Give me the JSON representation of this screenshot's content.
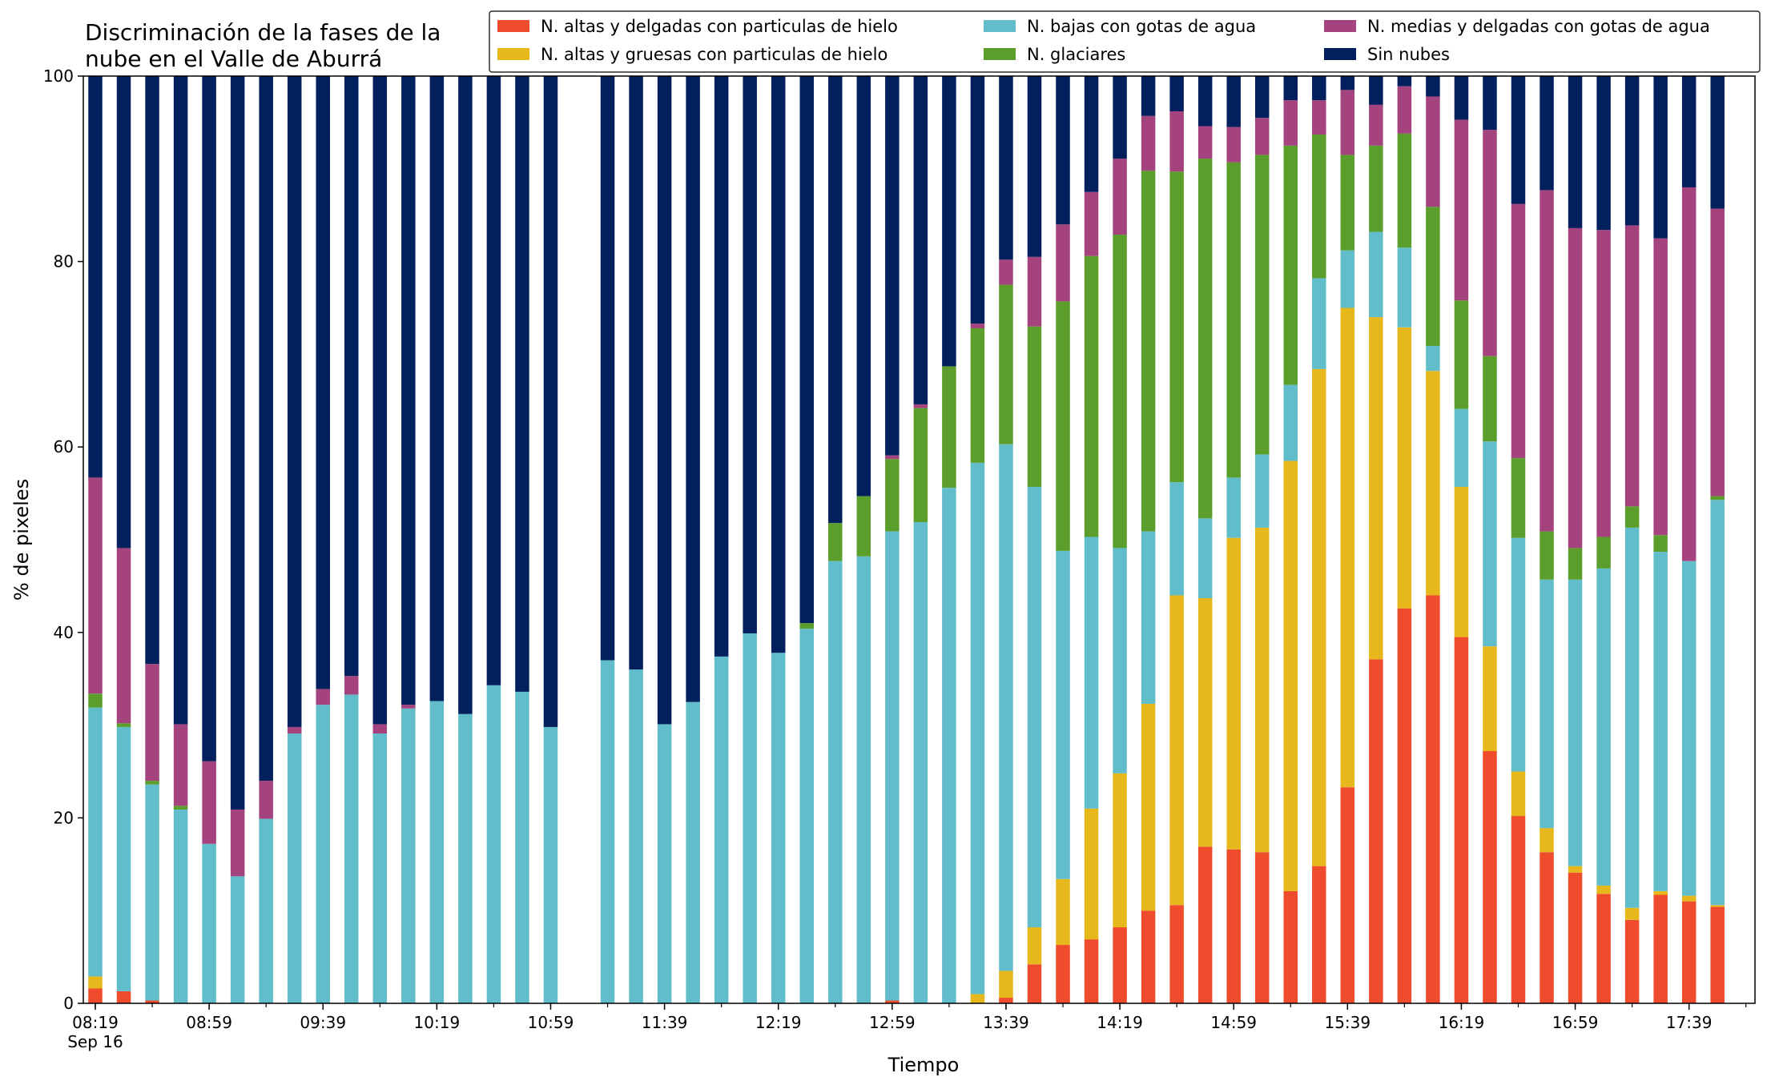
{
  "chart_data": {
    "type": "bar",
    "stacked": true,
    "title_lines": [
      "Discriminación de la fases de la",
      "nube en el Valle de Aburrá"
    ],
    "xlabel": "Tiempo",
    "ylabel": "% de pixeles",
    "ylim": [
      0,
      100
    ],
    "yticks": [
      0,
      20,
      40,
      60,
      80,
      100
    ],
    "xticks": [
      {
        "index": 0,
        "label": "08:19",
        "sublabel": "Sep 16"
      },
      {
        "index": 4,
        "label": "08:59"
      },
      {
        "index": 8,
        "label": "09:39"
      },
      {
        "index": 12,
        "label": "10:19"
      },
      {
        "index": 16,
        "label": "10:59"
      },
      {
        "index": 20,
        "label": "11:39"
      },
      {
        "index": 24,
        "label": "12:19"
      },
      {
        "index": 28,
        "label": "12:59"
      },
      {
        "index": 32,
        "label": "13:39"
      },
      {
        "index": 36,
        "label": "14:19"
      },
      {
        "index": 40,
        "label": "14:59"
      },
      {
        "index": 44,
        "label": "15:39"
      },
      {
        "index": 48,
        "label": "16:19"
      },
      {
        "index": 52,
        "label": "16:59"
      },
      {
        "index": 56,
        "label": "17:39"
      }
    ],
    "categories": [
      "08:19",
      "08:29",
      "08:39",
      "08:49",
      "08:59",
      "09:09",
      "09:19",
      "09:29",
      "09:39",
      "09:49",
      "09:59",
      "10:09",
      "10:19",
      "10:29",
      "10:39",
      "10:49",
      "10:59",
      "11:09",
      "11:19",
      "11:29",
      "11:39",
      "11:49",
      "11:59",
      "12:09",
      "12:19",
      "12:29",
      "12:39",
      "12:49",
      "12:59",
      "13:09",
      "13:19",
      "13:29",
      "13:39",
      "13:49",
      "13:59",
      "14:09",
      "14:19",
      "14:29",
      "14:39",
      "14:49",
      "14:59",
      "15:09",
      "15:19",
      "15:29",
      "15:39",
      "15:49",
      "15:59",
      "16:09",
      "16:19",
      "16:29",
      "16:39",
      "16:49",
      "16:59",
      "17:09",
      "17:19",
      "17:29",
      "17:39",
      "17:49"
    ],
    "legend": {
      "location": "upper right",
      "columns": 3
    },
    "series": [
      {
        "name": "N. altas y delgadas con particulas de hielo",
        "color": "#ee4c2c",
        "values": [
          1.6,
          1.3,
          0.3,
          0,
          0,
          0,
          0,
          0,
          0,
          0,
          0,
          0,
          0,
          0,
          0,
          0,
          0,
          0,
          0,
          0,
          0,
          0,
          0,
          0,
          0,
          0,
          0,
          0,
          0.3,
          0,
          0,
          0,
          0.6,
          4.2,
          6.3,
          6.9,
          8.2,
          10.0,
          10.6,
          16.9,
          16.6,
          16.3,
          12.1,
          14.8,
          23.3,
          37.1,
          42.6,
          44.0,
          39.5,
          27.2,
          20.2,
          16.3,
          14.1,
          11.8,
          9.0,
          11.7,
          11.0,
          10.4
        ]
      },
      {
        "name": "N. altas y gruesas con particulas de hielo",
        "color": "#e6b81c",
        "values": [
          1.3,
          0,
          0,
          0,
          0,
          0,
          0,
          0,
          0,
          0,
          0,
          0,
          0,
          0,
          0,
          0,
          0,
          0,
          0,
          0,
          0,
          0,
          0,
          0,
          0,
          0,
          0,
          0,
          0,
          0,
          0,
          1.0,
          2.9,
          4.0,
          7.1,
          14.1,
          16.6,
          22.3,
          33.4,
          26.8,
          33.6,
          35.0,
          46.4,
          53.6,
          51.7,
          36.9,
          30.3,
          24.2,
          16.2,
          11.3,
          4.8,
          2.6,
          0.7,
          0.9,
          1.3,
          0.4,
          0.6,
          0.2
        ]
      },
      {
        "name": "N. bajas con gotas de agua",
        "color": "#62bdca",
        "values": [
          29.0,
          28.5,
          23.3,
          20.9,
          17.2,
          13.7,
          19.9,
          29.1,
          32.2,
          33.3,
          29.1,
          31.8,
          32.6,
          31.2,
          34.3,
          33.6,
          29.8,
          0,
          37.0,
          36.0,
          30.1,
          32.5,
          37.4,
          39.9,
          37.8,
          40.4,
          47.7,
          48.2,
          50.6,
          51.9,
          55.6,
          57.3,
          56.8,
          47.5,
          35.4,
          29.3,
          24.3,
          18.6,
          12.2,
          8.6,
          6.5,
          7.9,
          8.2,
          9.8,
          6.2,
          9.2,
          8.6,
          2.7,
          8.4,
          22.1,
          25.2,
          26.8,
          30.9,
          34.2,
          41.0,
          36.6,
          36.1,
          43.7
        ]
      },
      {
        "name": "N. glaciares",
        "color": "#5b9e2c",
        "values": [
          1.5,
          0.4,
          0.4,
          0.4,
          0,
          0,
          0,
          0,
          0,
          0,
          0,
          0,
          0,
          0,
          0,
          0,
          0,
          0,
          0,
          0,
          0,
          0,
          0,
          0,
          0,
          0.6,
          4.1,
          6.5,
          7.8,
          12.3,
          13.1,
          14.5,
          17.2,
          17.3,
          26.9,
          30.3,
          33.8,
          38.9,
          33.5,
          38.8,
          34.0,
          32.3,
          25.8,
          15.5,
          10.3,
          9.3,
          12.3,
          15.0,
          11.7,
          9.2,
          8.6,
          5.2,
          3.4,
          3.4,
          2.3,
          1.8,
          0,
          0.4
        ]
      },
      {
        "name": "N. medias y delgadas con gotas de agua",
        "color": "#a4437d",
        "values": [
          23.3,
          18.9,
          12.6,
          8.8,
          8.9,
          7.2,
          4.1,
          0.7,
          1.7,
          2.0,
          1.0,
          0.4,
          0,
          0,
          0,
          0,
          0,
          0,
          0,
          0,
          0,
          0,
          0,
          0,
          0,
          0,
          0,
          0,
          0.4,
          0.4,
          0,
          0.5,
          2.7,
          7.5,
          8.3,
          6.9,
          8.2,
          5.9,
          6.5,
          3.5,
          3.8,
          4.0,
          4.9,
          3.7,
          7.0,
          4.4,
          5.1,
          11.9,
          19.5,
          24.4,
          27.4,
          36.8,
          34.5,
          33.1,
          30.3,
          32.0,
          40.3,
          31.0
        ]
      },
      {
        "name": "Sin nubes",
        "color": "#03205e",
        "values": [
          43.3,
          50.9,
          63.4,
          69.9,
          73.9,
          79.1,
          76.0,
          70.2,
          66.1,
          64.7,
          69.9,
          67.8,
          67.4,
          68.8,
          65.7,
          66.4,
          70.2,
          0,
          63.0,
          64.0,
          69.9,
          67.5,
          62.6,
          60.1,
          62.2,
          59.0,
          48.2,
          45.3,
          40.9,
          35.4,
          31.3,
          26.7,
          19.8,
          19.5,
          16.0,
          12.5,
          8.9,
          4.3,
          3.8,
          5.4,
          5.5,
          4.5,
          2.6,
          2.6,
          1.5,
          3.1,
          1.1,
          2.2,
          4.7,
          5.8,
          13.8,
          12.3,
          16.4,
          16.6,
          16.1,
          17.5,
          12.0,
          14.3
        ]
      }
    ]
  }
}
